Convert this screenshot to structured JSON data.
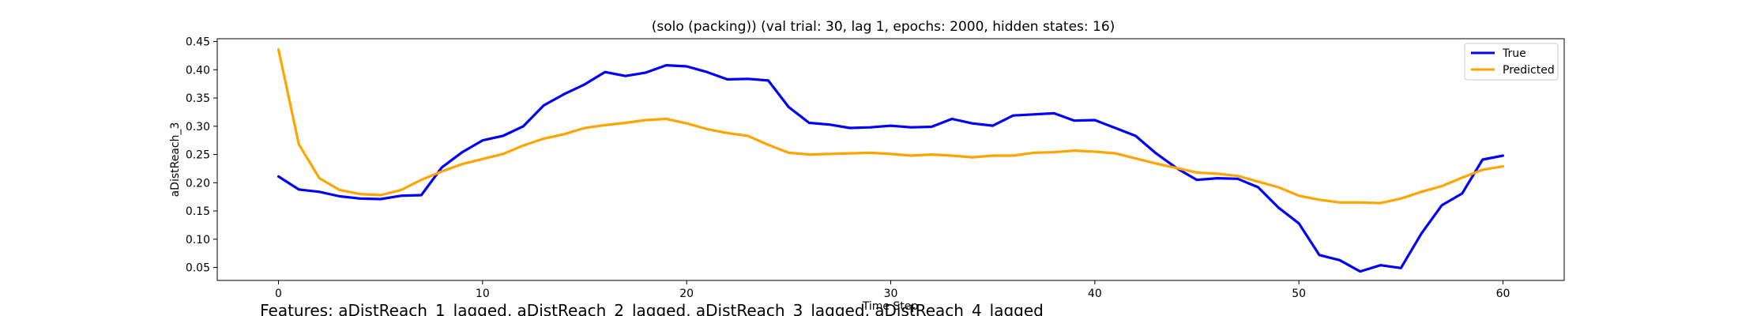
{
  "chart_data": {
    "type": "line",
    "title": "(solo (packing)) (val trial: 30, lag 1, epochs: 2000, hidden states: 16)",
    "xlabel": "Time Step",
    "ylabel": "aDistReach_3",
    "caption": "Features: aDistReach_1_lagged, aDistReach_2_lagged, aDistReach_3_lagged, aDistReach_4_lagged",
    "xlim": [
      -3,
      63
    ],
    "ylim": [
      0.027,
      0.455
    ],
    "xticks": [
      0,
      10,
      20,
      30,
      40,
      50,
      60
    ],
    "yticks": [
      0.05,
      0.1,
      0.15,
      0.2,
      0.25,
      0.3,
      0.35,
      0.4,
      0.45
    ],
    "ytick_labels": [
      "0.05",
      "0.10",
      "0.15",
      "0.20",
      "0.25",
      "0.30",
      "0.35",
      "0.40",
      "0.45"
    ],
    "legend_position": "top-right",
    "grid": false,
    "x": [
      0,
      1,
      2,
      3,
      4,
      5,
      6,
      7,
      8,
      9,
      10,
      11,
      12,
      13,
      14,
      15,
      16,
      17,
      18,
      19,
      20,
      21,
      22,
      23,
      24,
      25,
      26,
      27,
      28,
      29,
      30,
      31,
      32,
      33,
      34,
      35,
      36,
      37,
      38,
      39,
      40,
      41,
      42,
      43,
      44,
      45,
      46,
      47,
      48,
      49,
      50,
      51,
      52,
      53,
      54,
      55,
      56,
      57,
      58,
      59,
      60
    ],
    "series": [
      {
        "name": "True",
        "color": "#0000ff",
        "values": [
          0.211,
          0.188,
          0.184,
          0.176,
          0.172,
          0.171,
          0.177,
          0.178,
          0.227,
          0.254,
          0.275,
          0.283,
          0.3,
          0.337,
          0.357,
          0.374,
          0.396,
          0.389,
          0.395,
          0.408,
          0.406,
          0.396,
          0.383,
          0.384,
          0.381,
          0.334,
          0.306,
          0.303,
          0.297,
          0.298,
          0.301,
          0.298,
          0.299,
          0.313,
          0.305,
          0.301,
          0.319,
          0.321,
          0.323,
          0.31,
          0.311,
          0.297,
          0.283,
          0.252,
          0.226,
          0.205,
          0.208,
          0.207,
          0.192,
          0.156,
          0.128,
          0.072,
          0.063,
          0.043,
          0.054,
          0.049,
          0.11,
          0.16,
          0.181,
          0.241,
          0.248
        ]
      },
      {
        "name": "Predicted",
        "color": "#ffa500",
        "values": [
          0.436,
          0.268,
          0.208,
          0.187,
          0.18,
          0.178,
          0.187,
          0.205,
          0.22,
          0.233,
          0.242,
          0.251,
          0.266,
          0.278,
          0.286,
          0.297,
          0.302,
          0.306,
          0.311,
          0.313,
          0.305,
          0.295,
          0.288,
          0.283,
          0.267,
          0.253,
          0.25,
          0.251,
          0.252,
          0.253,
          0.251,
          0.248,
          0.25,
          0.248,
          0.245,
          0.248,
          0.248,
          0.253,
          0.254,
          0.257,
          0.255,
          0.252,
          0.243,
          0.234,
          0.226,
          0.218,
          0.216,
          0.212,
          0.202,
          0.192,
          0.177,
          0.17,
          0.165,
          0.165,
          0.164,
          0.172,
          0.184,
          0.194,
          0.209,
          0.223,
          0.229
        ]
      }
    ]
  }
}
